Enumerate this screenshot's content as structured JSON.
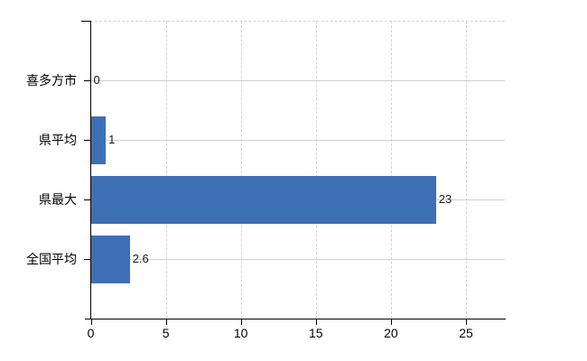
{
  "chart_data": {
    "type": "bar",
    "orientation": "horizontal",
    "categories": [
      "喜多方市",
      "県平均",
      "県最大",
      "全国平均"
    ],
    "values": [
      0,
      1,
      23,
      2.6
    ],
    "value_labels": [
      "0",
      "1",
      "23",
      "2.6"
    ],
    "x_ticks": [
      0,
      5,
      10,
      15,
      20,
      25
    ],
    "x_tick_labels": [
      "0",
      "5",
      "10",
      "15",
      "20",
      "25"
    ],
    "xlim": [
      0,
      27.6
    ],
    "grid": true,
    "legend": false,
    "title": "",
    "bar_color": "#3e6fb5",
    "h_grid_color": "#ccd2ca",
    "v_grid_color": "#d4d0da",
    "axis_color": "#000000",
    "label_color": "#000000",
    "value_label_color": "#1a1a1a",
    "background_color": "#ffffff"
  }
}
